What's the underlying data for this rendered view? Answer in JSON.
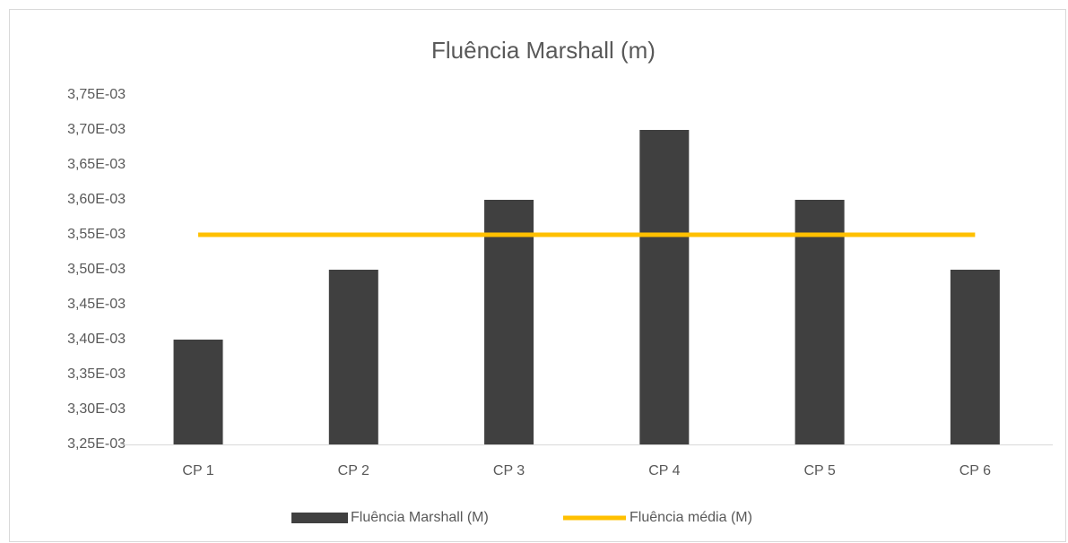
{
  "chart_data": {
    "type": "bar",
    "title": "Fluência Marshall (m)",
    "categories": [
      "CP 1",
      "CP 2",
      "CP 3",
      "CP 4",
      "CP 5",
      "CP 6"
    ],
    "series": [
      {
        "name": "Fluência Marshall (M)",
        "type": "bar",
        "color": "#404040",
        "values": [
          0.0034,
          0.0035,
          0.0036,
          0.0037,
          0.0036,
          0.0035
        ]
      },
      {
        "name": "Fluência média (M)",
        "type": "line",
        "color": "#ffc000",
        "values": [
          0.00355,
          0.00355,
          0.00355,
          0.00355,
          0.00355,
          0.00355
        ]
      }
    ],
    "ylim": [
      0.00325,
      0.00375
    ],
    "yticks": [
      {
        "value": 0.00325,
        "label": "3,25E-03"
      },
      {
        "value": 0.0033,
        "label": "3,30E-03"
      },
      {
        "value": 0.00335,
        "label": "3,35E-03"
      },
      {
        "value": 0.0034,
        "label": "3,40E-03"
      },
      {
        "value": 0.00345,
        "label": "3,45E-03"
      },
      {
        "value": 0.0035,
        "label": "3,50E-03"
      },
      {
        "value": 0.00355,
        "label": "3,55E-03"
      },
      {
        "value": 0.0036,
        "label": "3,60E-03"
      },
      {
        "value": 0.00365,
        "label": "3,65E-03"
      },
      {
        "value": 0.0037,
        "label": "3,70E-03"
      },
      {
        "value": 0.00375,
        "label": "3,75E-03"
      }
    ],
    "grid": false,
    "legend": "bottom"
  }
}
